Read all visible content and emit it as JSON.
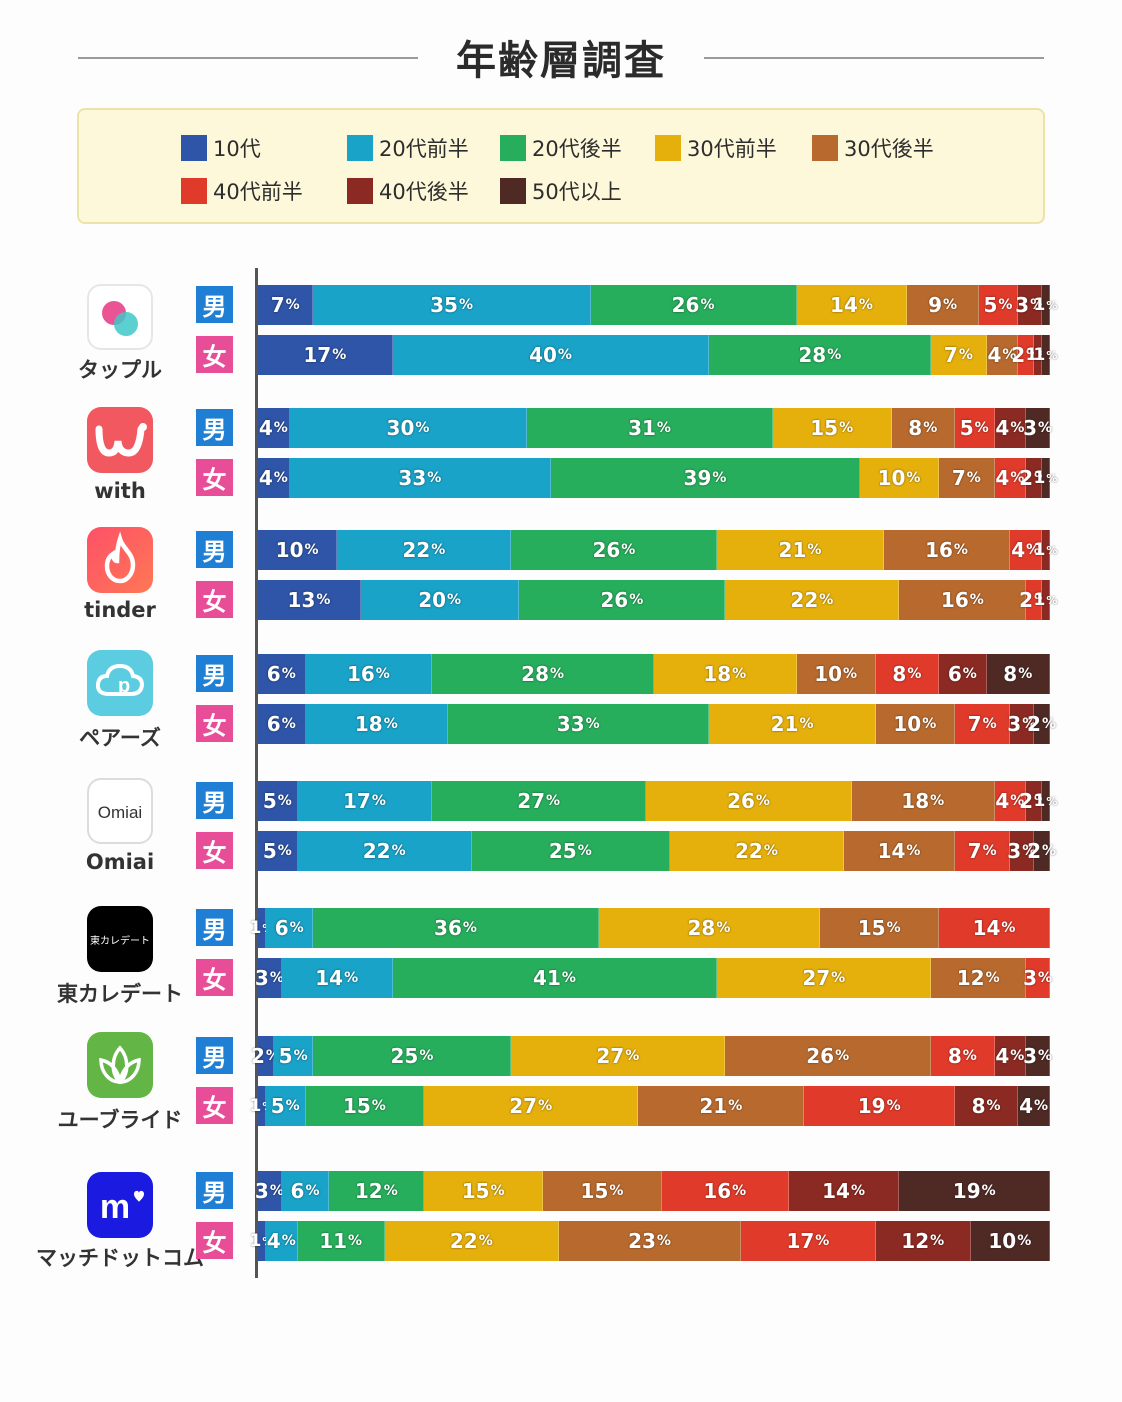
{
  "title": "年齢層調査",
  "legend": [
    {
      "label": "10代",
      "color": "#2e55a8"
    },
    {
      "label": "20代前半",
      "color": "#19a3c8"
    },
    {
      "label": "20代後半",
      "color": "#27ae5c"
    },
    {
      "label": "30代前半",
      "color": "#e6b00c"
    },
    {
      "label": "30代後半",
      "color": "#b86a2e"
    },
    {
      "label": "40代前半",
      "color": "#e03a2a"
    },
    {
      "label": "40代後半",
      "color": "#8b2a22"
    },
    {
      "label": "50代以上",
      "color": "#4f2a25"
    }
  ],
  "gender_labels": {
    "male": "男",
    "female": "女"
  },
  "pct_sign": "%",
  "chart_data": {
    "type": "bar",
    "stacked": true,
    "orientation": "horizontal",
    "unit": "%",
    "title": "年齢層調査",
    "series_names": [
      "10代",
      "20代前半",
      "20代後半",
      "30代前半",
      "30代後半",
      "40代前半",
      "40代後半",
      "50代以上"
    ],
    "apps": [
      {
        "name": "タップル",
        "icon": "tapple-icon",
        "male": [
          7,
          35,
          26,
          14,
          9,
          5,
          3,
          1
        ],
        "female": [
          17,
          40,
          28,
          7,
          4,
          2,
          1,
          1
        ]
      },
      {
        "name": "with",
        "icon": "with-icon",
        "male": [
          4,
          30,
          31,
          15,
          8,
          5,
          4,
          3
        ],
        "female": [
          4,
          33,
          39,
          10,
          7,
          4,
          2,
          1
        ]
      },
      {
        "name": "tinder",
        "icon": "tinder-icon",
        "male": [
          10,
          22,
          26,
          21,
          16,
          4,
          1,
          0
        ],
        "female": [
          13,
          20,
          26,
          22,
          16,
          2,
          1,
          0
        ]
      },
      {
        "name": "ペアーズ",
        "icon": "pairs-icon",
        "male": [
          6,
          16,
          28,
          18,
          10,
          8,
          6,
          8
        ],
        "female": [
          6,
          18,
          33,
          21,
          10,
          7,
          3,
          2
        ]
      },
      {
        "name": "Omiai",
        "icon": "omiai-icon",
        "icon_text": "Omiai",
        "male": [
          5,
          17,
          27,
          26,
          18,
          4,
          2,
          1
        ],
        "female": [
          5,
          22,
          25,
          22,
          14,
          7,
          3,
          2
        ]
      },
      {
        "name": "東カレデート",
        "icon": "higashicare-icon",
        "icon_text": "東カレデート",
        "male": [
          1,
          6,
          36,
          28,
          15,
          14,
          0,
          0
        ],
        "female": [
          3,
          14,
          41,
          27,
          12,
          3,
          0,
          0
        ]
      },
      {
        "name": "ユーブライド",
        "icon": "youbride-icon",
        "male": [
          2,
          5,
          25,
          27,
          26,
          8,
          4,
          3
        ],
        "female": [
          1,
          5,
          15,
          27,
          21,
          19,
          8,
          4
        ]
      },
      {
        "name": "マッチドットコム",
        "icon": "match-icon",
        "icon_text": "m",
        "male": [
          3,
          6,
          12,
          15,
          15,
          16,
          14,
          19
        ],
        "female": [
          1,
          4,
          11,
          22,
          23,
          17,
          12,
          10
        ]
      }
    ]
  }
}
